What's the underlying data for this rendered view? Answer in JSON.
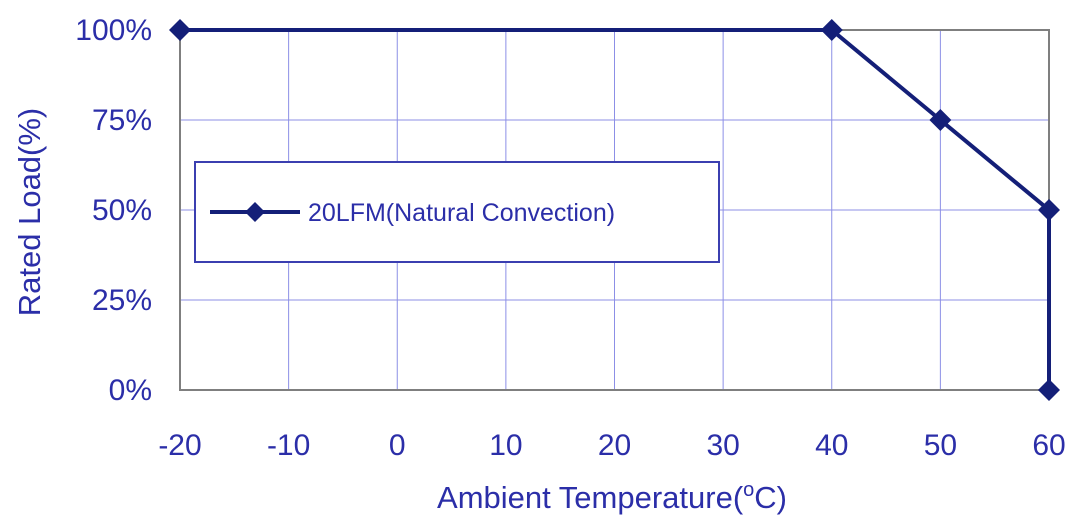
{
  "chart_data": {
    "type": "line",
    "xlabel": "Ambient Temperature(",
    "xlabel_unit": "C)",
    "xlabel_superscript": "o",
    "ylabel": "Rated Load(%)",
    "x_ticks": [
      "-20",
      "-10",
      "0",
      "10",
      "20",
      "30",
      "40",
      "50",
      "60"
    ],
    "y_ticks": [
      "0%",
      "25%",
      "50%",
      "75%",
      "100%"
    ],
    "xlim": [
      -20,
      60
    ],
    "ylim": [
      0,
      100
    ],
    "grid": true,
    "legend_position": "center-left",
    "series": [
      {
        "name": "20LFM(Natural Convection)",
        "x": [
          -20,
          40,
          50,
          60,
          60
        ],
        "y": [
          100,
          100,
          75,
          50,
          0
        ],
        "marker": "diamond"
      }
    ]
  },
  "colors": {
    "series": "#141f78",
    "text": "#2b2ea8",
    "grid": "#8c8fe6",
    "frame": "#7f7f7f",
    "legend_border": "#3b3fb0"
  }
}
